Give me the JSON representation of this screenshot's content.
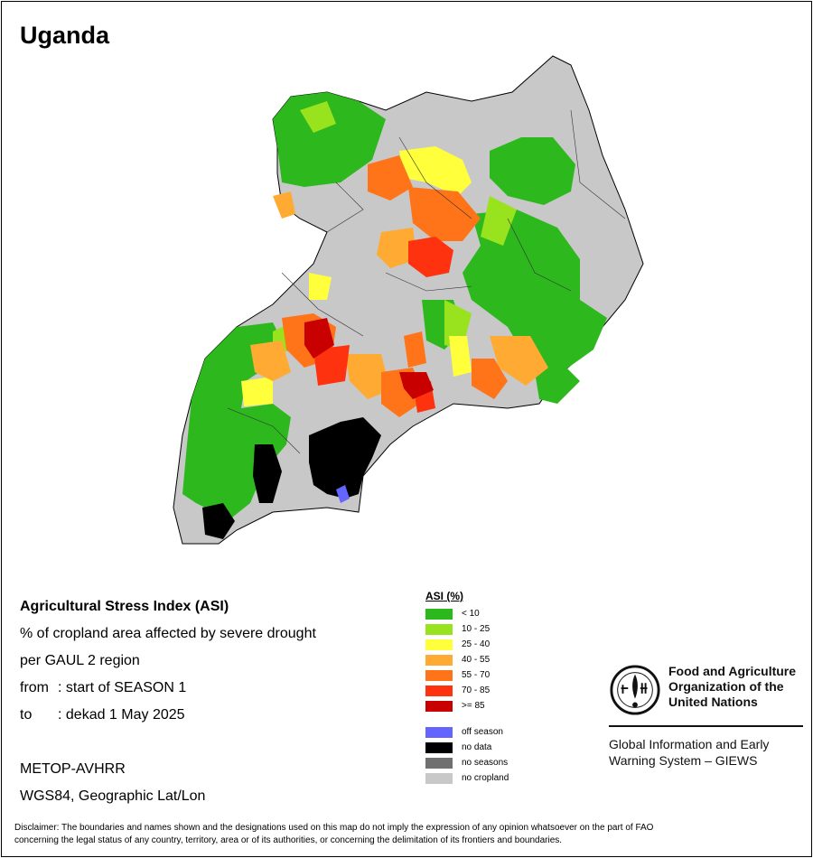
{
  "country": "Uganda",
  "info": {
    "title": "Agricultural Stress Index (ASI)",
    "line1": "% of cropland area affected by severe drought",
    "line2": "per GAUL 2 region",
    "from_key": "from",
    "from_value": ": start of SEASON 1",
    "to_key": "to",
    "to_value": ": dekad 1 May 2025",
    "sensor": "METOP-AVHRR",
    "projection": "WGS84, Geographic Lat/Lon"
  },
  "legend": {
    "title": "ASI (%)",
    "classes": [
      {
        "label": "< 10",
        "color": "#2db81e"
      },
      {
        "label": "10 - 25",
        "color": "#98e21e"
      },
      {
        "label": "25 - 40",
        "color": "#ffff3c"
      },
      {
        "label": "40 - 55",
        "color": "#ffaa32"
      },
      {
        "label": "55 - 70",
        "color": "#ff7319"
      },
      {
        "label": "70 - 85",
        "color": "#ff3210"
      },
      {
        "label": ">= 85",
        "color": "#c80000"
      }
    ],
    "special": [
      {
        "label": "off season",
        "color": "#6464ff"
      },
      {
        "label": "no data",
        "color": "#000000"
      },
      {
        "label": "no seasons",
        "color": "#707070"
      },
      {
        "label": "no cropland",
        "color": "#c8c8c8"
      }
    ]
  },
  "fao": {
    "org_line1": "Food and Agriculture",
    "org_line2": "Organization of the",
    "org_line3": "United Nations",
    "giews_line1": "Global Information and Early",
    "giews_line2": "Warning System – GIEWS"
  },
  "disclaimer_line1": "Disclaimer: The boundaries and names shown and the designations used on this map do not imply the expression of any opinion whatsoever on the part of FAO",
  "disclaimer_line2": "concerning the legal status of any country, territory, area or of its authorities, or concerning the delimitation of its frontiers and boundaries."
}
